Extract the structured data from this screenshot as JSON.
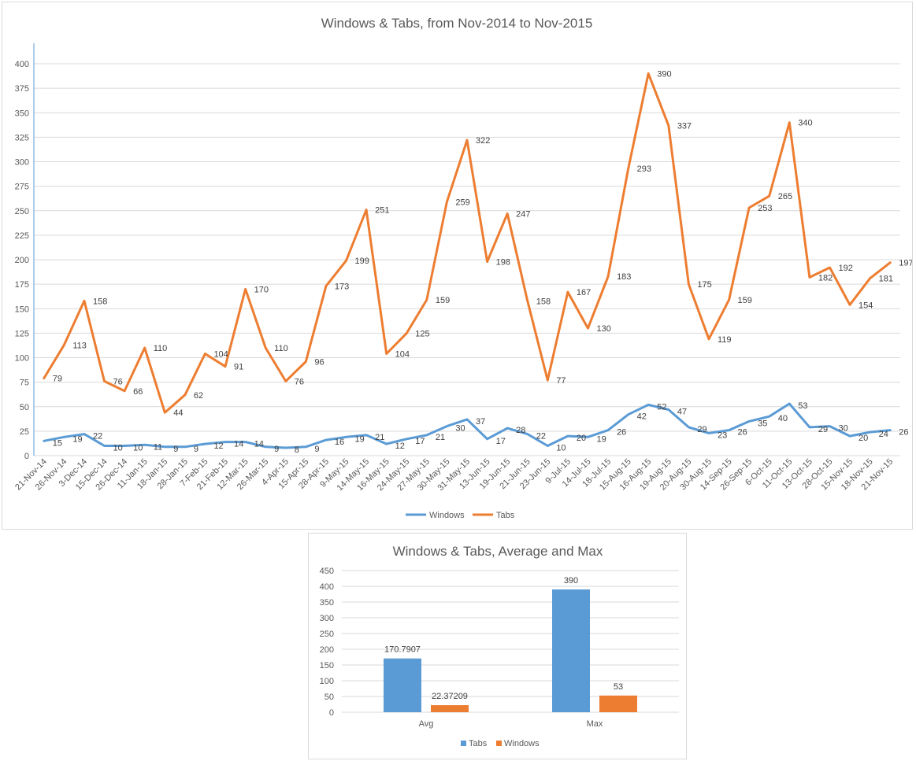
{
  "chart_data": [
    {
      "type": "line",
      "title": "Windows & Tabs, from Nov-2014 to Nov-2015",
      "xlabel": "",
      "ylabel": "",
      "ylim": [
        0,
        400
      ],
      "yticks": [
        0,
        25,
        50,
        75,
        100,
        125,
        150,
        175,
        200,
        225,
        250,
        275,
        300,
        325,
        350,
        375,
        400
      ],
      "grid": true,
      "legend": "bottom",
      "categories": [
        "21-Nov-14",
        "26-Nov-14",
        "3-Dec-14",
        "15-Dec-14",
        "26-Dec-14",
        "11-Jan-15",
        "18-Jan-15",
        "28-Jan-15",
        "7-Feb-15",
        "21-Feb-15",
        "12-Mar-15",
        "26-Mar-15",
        "4-Apr-15",
        "15-Apr-15",
        "28-Apr-15",
        "9-May-15",
        "14-May-15",
        "16-May-15",
        "24-May-15",
        "27-May-15",
        "30-May-15",
        "31-May-15",
        "13-Jun-15",
        "19-Jun-15",
        "21-Jun-15",
        "23-Jun-15",
        "9-Jul-15",
        "14-Jul-15",
        "18-Jul-15",
        "15-Aug-15",
        "16-Aug-15",
        "19-Aug-15",
        "20-Aug-15",
        "30-Aug-15",
        "14-Sep-15",
        "26-Sep-15",
        "6-Oct-15",
        "11-Oct-15",
        "13-Oct-15",
        "28-Oct-15",
        "15-Nov-15",
        "18-Nov-15",
        "21-Nov-15"
      ],
      "series": [
        {
          "name": "Windows",
          "color": "#5b9bd5",
          "values": [
            15,
            19,
            22,
            10,
            10,
            11,
            9,
            9,
            12,
            14,
            14,
            9,
            8,
            9,
            16,
            19,
            21,
            12,
            17,
            21,
            30,
            37,
            17,
            28,
            22,
            10,
            20,
            19,
            26,
            42,
            52,
            47,
            29,
            23,
            26,
            35,
            40,
            53,
            29,
            30,
            20,
            24,
            26
          ]
        },
        {
          "name": "Tabs",
          "color": "#ed7d31",
          "values": [
            79,
            113,
            158,
            76,
            66,
            110,
            44,
            62,
            104,
            91,
            170,
            110,
            76,
            96,
            173,
            199,
            251,
            104,
            125,
            159,
            259,
            322,
            198,
            247,
            158,
            77,
            167,
            130,
            183,
            293,
            390,
            337,
            175,
            119,
            159,
            253,
            265,
            340,
            182,
            192,
            154,
            181,
            197
          ]
        }
      ]
    },
    {
      "type": "bar",
      "title": "Windows & Tabs, Average and Max",
      "xlabel": "",
      "ylabel": "",
      "ylim": [
        0,
        450
      ],
      "yticks": [
        0,
        50,
        100,
        150,
        200,
        250,
        300,
        350,
        400,
        450
      ],
      "grid": true,
      "legend": "bottom",
      "categories": [
        "Avg",
        "Max"
      ],
      "series": [
        {
          "name": "Tabs",
          "color": "#5b9bd5",
          "values": [
            170.7907,
            390
          ],
          "labels": [
            "170.7907",
            "390"
          ]
        },
        {
          "name": "Windows",
          "color": "#ed7d31",
          "values": [
            22.37209,
            53
          ],
          "labels": [
            "22.37209",
            "53"
          ]
        }
      ]
    }
  ]
}
